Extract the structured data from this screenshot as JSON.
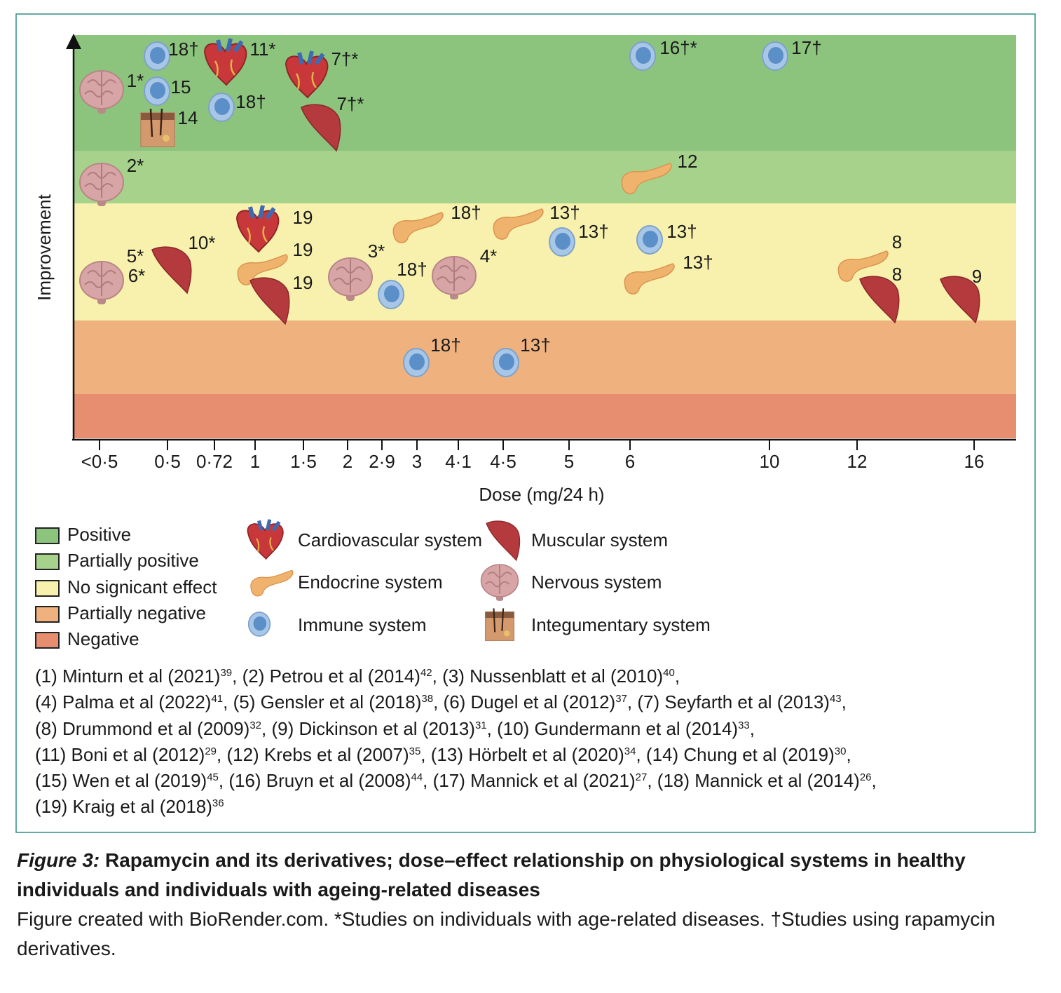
{
  "figure": {
    "y_label": "Improvement",
    "x_label": "Dose (mg/24 h)",
    "x_ticks": [
      "<0·5",
      "0·5",
      "0·72",
      "1",
      "1·5",
      "2",
      "2·9",
      "3",
      "4·1",
      "4·5",
      "5",
      "6",
      "10",
      "12",
      "16"
    ],
    "bands": [
      {
        "name": "Positive",
        "color": "#8cc47e"
      },
      {
        "name": "Partially positive",
        "color": "#a7d28b"
      },
      {
        "name": "No signicant effect",
        "color": "#f7f1ad"
      },
      {
        "name": "Partially negative",
        "color": "#efb27f"
      },
      {
        "name": "Negative",
        "color": "#e68e6f"
      }
    ],
    "systems": [
      {
        "id": "heart",
        "name": "Cardiovascular system"
      },
      {
        "id": "endocrine",
        "name": "Endocrine system"
      },
      {
        "id": "immune",
        "name": "Immune system"
      },
      {
        "id": "muscle",
        "name": "Muscular system"
      },
      {
        "id": "brain",
        "name": "Nervous system"
      },
      {
        "id": "skin",
        "name": "Integumentary system"
      }
    ],
    "points": [
      {
        "system": "brain",
        "labels": [
          "1*"
        ]
      },
      {
        "system": "immune",
        "labels": [
          "18†"
        ]
      },
      {
        "system": "heart",
        "labels": [
          "11*"
        ]
      },
      {
        "system": "heart",
        "labels": [
          "7†*"
        ]
      },
      {
        "system": "immune",
        "labels": [
          "15"
        ]
      },
      {
        "system": "skin",
        "labels": [
          "14"
        ]
      },
      {
        "system": "immune",
        "labels": [
          "18†"
        ]
      },
      {
        "system": "muscle",
        "labels": [
          "7†*"
        ]
      },
      {
        "system": "immune",
        "labels": [
          "16†*"
        ]
      },
      {
        "system": "immune",
        "labels": [
          "17†"
        ]
      },
      {
        "system": "brain",
        "labels": [
          "2*"
        ]
      },
      {
        "system": "endocrine",
        "labels": [
          "12"
        ]
      },
      {
        "system": "heart",
        "labels": [
          "19"
        ]
      },
      {
        "system": "endocrine",
        "labels": [
          "19"
        ]
      },
      {
        "system": "muscle",
        "labels": [
          "19"
        ]
      },
      {
        "system": "muscle",
        "labels": [
          "10*"
        ]
      },
      {
        "system": "brain",
        "labels": [
          "5*",
          "6*"
        ]
      },
      {
        "system": "brain",
        "labels": [
          "3*"
        ]
      },
      {
        "system": "immune",
        "labels": [
          "18†"
        ]
      },
      {
        "system": "endocrine",
        "labels": [
          "18†"
        ]
      },
      {
        "system": "brain",
        "labels": [
          "4*"
        ]
      },
      {
        "system": "endocrine",
        "labels": [
          "13†"
        ]
      },
      {
        "system": "immune",
        "labels": [
          "13†"
        ]
      },
      {
        "system": "immune",
        "labels": [
          "13†"
        ]
      },
      {
        "system": "endocrine",
        "labels": [
          "13†"
        ]
      },
      {
        "system": "endocrine",
        "labels": [
          "8"
        ]
      },
      {
        "system": "muscle",
        "labels": [
          "8"
        ]
      },
      {
        "system": "muscle",
        "labels": [
          "9"
        ]
      },
      {
        "system": "immune",
        "labels": [
          "18†"
        ]
      },
      {
        "system": "immune",
        "labels": [
          "13†"
        ]
      }
    ]
  },
  "references": [
    [
      {
        "text": "(1) Minturn et al (2021)",
        "sup": "39"
      },
      {
        "text": "(2) Petrou et al (2014)",
        "sup": "42"
      },
      {
        "text": "(3) Nussenblatt et al (2010)",
        "sup": "40"
      }
    ],
    [
      {
        "text": "(4) Palma et al (2022)",
        "sup": "41"
      },
      {
        "text": "(5) Gensler et al (2018)",
        "sup": "38"
      },
      {
        "text": "(6) Dugel et al (2012)",
        "sup": "37"
      },
      {
        "text": "(7) Seyfarth et al (2013)",
        "sup": "43"
      }
    ],
    [
      {
        "text": "(8) Drummond et al (2009)",
        "sup": "32"
      },
      {
        "text": "(9) Dickinson et al (2013)",
        "sup": "31"
      },
      {
        "text": "(10) Gundermann et al (2014)",
        "sup": "33"
      }
    ],
    [
      {
        "text": "(11) Boni et al (2012)",
        "sup": "29"
      },
      {
        "text": "(12) Krebs et al (2007)",
        "sup": "35"
      },
      {
        "text": "(13) Hörbelt et al (2020)",
        "sup": "34"
      },
      {
        "text": "(14) Chung et al (2019)",
        "sup": "30"
      }
    ],
    [
      {
        "text": "(15) Wen et al (2019)",
        "sup": "45"
      },
      {
        "text": "(16) Bruyn et al (2008)",
        "sup": "44"
      },
      {
        "text": "(17) Mannick et al (2021)",
        "sup": "27"
      },
      {
        "text": "(18) Mannick et al (2014)",
        "sup": "26"
      }
    ],
    [
      {
        "text": "(19) Kraig et al (2018)",
        "sup": "36"
      }
    ]
  ],
  "caption": {
    "number": "Figure 3:",
    "title": "Rapamycin and its derivatives; dose–effect relationship on physiological systems in healthy individuals and individuals with ageing-related diseases",
    "note": "Figure created with BioRender.com. *Studies on individuals with age-related diseases. †Studies using rapamycin derivatives."
  }
}
